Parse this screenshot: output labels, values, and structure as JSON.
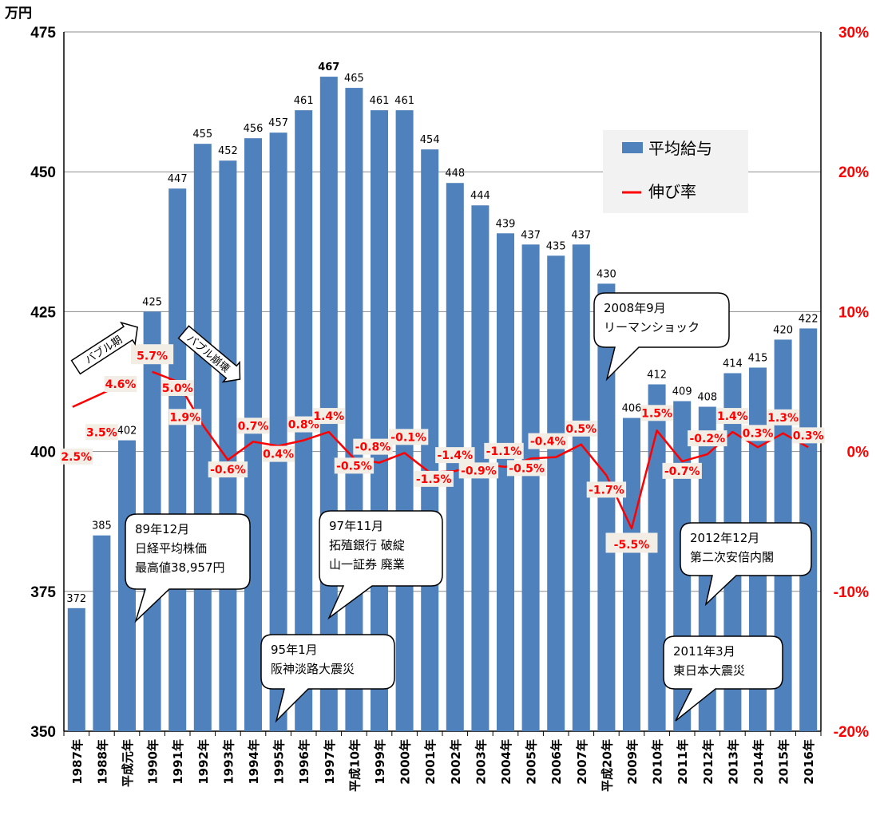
{
  "chart_data": {
    "type": "bar",
    "unit_label": "万円",
    "categories": [
      "1987年",
      "1988年",
      "平成元年",
      "1990年",
      "1991年",
      "1992年",
      "1993年",
      "1994年",
      "1995年",
      "1996年",
      "1997年",
      "平成10年",
      "1999年",
      "2000年",
      "2001年",
      "2002年",
      "2003年",
      "2004年",
      "2005年",
      "2006年",
      "2007年",
      "平成20年",
      "2009年",
      "2010年",
      "2011年",
      "2012年",
      "2013年",
      "2014年",
      "2015年",
      "2016年"
    ],
    "series": [
      {
        "name": "平均給与",
        "type": "bar",
        "axis": "left",
        "color": "#4f81bd",
        "values": [
          372,
          385,
          402,
          425,
          447,
          455,
          452,
          456,
          457,
          461,
          467,
          465,
          461,
          461,
          454,
          448,
          444,
          439,
          437,
          435,
          437,
          430,
          406,
          412,
          409,
          408,
          414,
          415,
          420,
          422
        ],
        "labels": [
          "372",
          "385",
          "402",
          "425",
          "447",
          "455",
          "452",
          "456",
          "457",
          "461",
          "467",
          "465",
          "461",
          "461",
          "454",
          "448",
          "444",
          "439",
          "437",
          "435",
          "437",
          "430",
          "406",
          "412",
          "409",
          "408",
          "414",
          "415",
          "420",
          "422"
        ],
        "bold_label_index": 10
      },
      {
        "name": "伸び率",
        "type": "line",
        "axis": "right",
        "color": "#ff0000",
        "values": [
          2.5,
          3.5,
          4.6,
          5.7,
          5.0,
          1.9,
          -0.6,
          0.7,
          0.4,
          0.8,
          1.4,
          -0.5,
          -0.8,
          -0.1,
          -1.5,
          -1.4,
          -0.9,
          -1.1,
          -0.5,
          -0.4,
          0.5,
          -1.7,
          -5.5,
          1.5,
          -0.7,
          -0.2,
          1.4,
          0.3,
          1.3,
          0.3
        ],
        "labels": [
          "2.5%",
          "3.5%",
          "4.6%",
          "5.7%",
          "5.0%",
          "1.9%",
          "-0.6%",
          "0.7%",
          "0.4%",
          "0.8%",
          "1.4%",
          "-0.5%",
          "-0.8%",
          "-0.1%",
          "-1.5%",
          "-1.4%",
          "-0.9%",
          "-1.1%",
          "-0.5%",
          "-0.4%",
          "0.5%",
          "-1.7%",
          "-5.5%",
          "1.5%",
          "-0.7%",
          "-0.2%",
          "1.4%",
          "0.3%",
          "1.3%",
          "0.3%"
        ],
        "line_start_index": 3
      }
    ],
    "y_left": {
      "min": 350,
      "max": 475,
      "ticks": [
        "350",
        "375",
        "400",
        "425",
        "450",
        "475"
      ]
    },
    "y_right": {
      "min": -20,
      "max": 30,
      "ticks": [
        "-20%",
        "-10%",
        "0%",
        "10%",
        "20%",
        "30%"
      ]
    },
    "grid": true,
    "legend": {
      "position": "top-right",
      "items": [
        "平均給与",
        "伸び率"
      ]
    },
    "annotations": {
      "arrows": [
        "バブル期",
        "バブル崩壊"
      ],
      "callouts": [
        {
          "lines": [
            "89年12月",
            "日経平均株価",
            "最高値38,957円"
          ]
        },
        {
          "lines": [
            "97年11月",
            "拓殖銀行 破綻",
            "山一証券 廃業"
          ]
        },
        {
          "lines": [
            "95年1月",
            "阪神淡路大震災"
          ]
        },
        {
          "lines": [
            "2008年9月",
            "リーマンショック"
          ]
        },
        {
          "lines": [
            "2012年12月",
            "第二次安倍内閣"
          ]
        },
        {
          "lines": [
            "2011年3月",
            "東日本大震災"
          ]
        }
      ]
    }
  }
}
